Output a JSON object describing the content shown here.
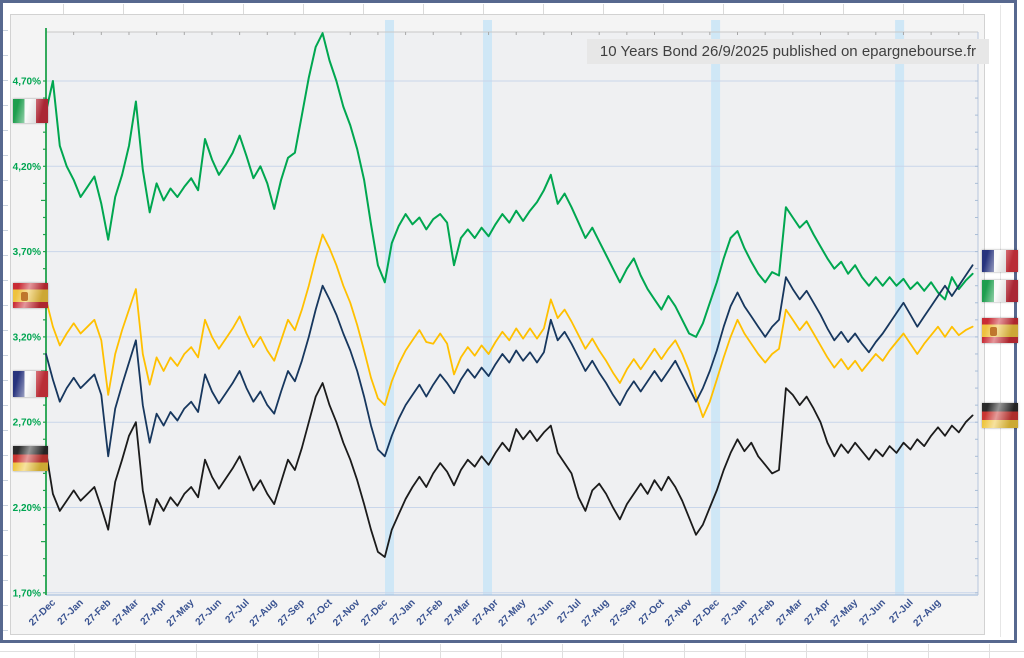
{
  "title_overlay": "10 Years Bond 26/9/2025 published on epargnebourse.fr",
  "chart_data": {
    "type": "line",
    "title": "10 Years Bond 26/9/2025 published on epargnebourse.fr",
    "x_axis": {
      "tick_labels": [
        "27-Dec",
        "27-Jan",
        "27-Feb",
        "27-Mar",
        "27-Apr",
        "27-May",
        "27-Jun",
        "27-Jul",
        "27-Aug",
        "27-Sep",
        "27-Oct",
        "27-Nov",
        "27-Dec",
        "27-Jan",
        "27-Feb",
        "27-Mar",
        "27-Apr",
        "27-May",
        "27-Jun",
        "27-Jul",
        "27-Aug",
        "27-Sep",
        "27-Oct",
        "27-Nov",
        "27-Dec",
        "27-Jan",
        "27-Feb",
        "27-Mar",
        "27-Apr",
        "27-May",
        "27-Jun",
        "27-Jul",
        "27-Aug"
      ]
    },
    "y_axis": {
      "tick_labels": [
        "4,70%",
        "4,20%",
        "3,70%",
        "3,20%",
        "2,70%",
        "2,20%",
        "1,70%"
      ],
      "tick_values": [
        4.7,
        4.2,
        3.7,
        3.2,
        2.7,
        2.2,
        1.7
      ],
      "unit": "percent yield"
    },
    "ylim": [
      1.69,
      4.99
    ],
    "grid": true,
    "highlight_bands_month_index": [
      12.42,
      15.96,
      24.21,
      30.86
    ],
    "colors": {
      "italy": "#00a750",
      "spain": "#ffc000",
      "france": "#17375e",
      "germany": "#1b1b1b",
      "band": "#cfe7f6",
      "gridline": "#c9d6ea",
      "bottom_axis": "#aac1de",
      "y_axis": "#1ea24c",
      "y_label": "#00a551",
      "x_label": "#3a5391",
      "title_bg": "#e7e7e7",
      "title_text": "#3f3f3f"
    },
    "month_step_per_point": 0.25,
    "series": [
      {
        "name": "Italy 10Y",
        "country": "italy",
        "values_bp": [
          452,
          470,
          432,
          420,
          412,
          402,
          408,
          414,
          398,
          377,
          402,
          415,
          432,
          458,
          418,
          393,
          410,
          400,
          407,
          402,
          408,
          413,
          406,
          436,
          424,
          415,
          421,
          428,
          438,
          426,
          413,
          420,
          410,
          395,
          412,
          425,
          428,
          450,
          472,
          490,
          498,
          482,
          470,
          455,
          444,
          430,
          412,
          386,
          362,
          352,
          375,
          385,
          392,
          386,
          390,
          383,
          389,
          392,
          387,
          362,
          378,
          383,
          378,
          384,
          379,
          386,
          392,
          387,
          394,
          388,
          394,
          399,
          406,
          415,
          398,
          404,
          396,
          387,
          378,
          384,
          376,
          368,
          360,
          352,
          360,
          366,
          356,
          348,
          342,
          336,
          344,
          338,
          330,
          322,
          320,
          328,
          340,
          352,
          366,
          378,
          382,
          372,
          364,
          357,
          352,
          358,
          356,
          396,
          390,
          384,
          388,
          380,
          373,
          366,
          360,
          364,
          357,
          362,
          355,
          350,
          355,
          350,
          355,
          350,
          354,
          348,
          352,
          347,
          352,
          346,
          342,
          355,
          348,
          353,
          357
        ]
      },
      {
        "name": "Spain 10Y",
        "country": "spain",
        "values_bp": [
          342,
          326,
          315,
          322,
          328,
          322,
          326,
          330,
          318,
          286,
          310,
          324,
          336,
          348,
          310,
          292,
          308,
          300,
          308,
          303,
          310,
          314,
          308,
          330,
          320,
          313,
          319,
          325,
          332,
          322,
          314,
          320,
          312,
          306,
          318,
          330,
          324,
          336,
          350,
          366,
          380,
          372,
          362,
          350,
          340,
          327,
          312,
          296,
          284,
          280,
          294,
          304,
          312,
          318,
          324,
          317,
          316,
          322,
          316,
          298,
          308,
          314,
          309,
          315,
          310,
          317,
          323,
          318,
          325,
          319,
          325,
          319,
          325,
          342,
          331,
          336,
          329,
          321,
          313,
          319,
          312,
          306,
          299,
          293,
          301,
          307,
          301,
          307,
          313,
          307,
          313,
          318,
          310,
          300,
          285,
          273,
          282,
          295,
          308,
          320,
          330,
          322,
          316,
          310,
          305,
          310,
          313,
          336,
          330,
          324,
          329,
          322,
          315,
          308,
          302,
          307,
          301,
          306,
          300,
          305,
          310,
          306,
          312,
          317,
          322,
          316,
          310,
          316,
          321,
          326,
          320,
          326,
          321,
          324,
          326
        ]
      },
      {
        "name": "France 10Y",
        "country": "france",
        "values_bp": [
          310,
          295,
          282,
          290,
          296,
          290,
          294,
          298,
          286,
          250,
          278,
          292,
          305,
          318,
          280,
          258,
          275,
          268,
          276,
          271,
          278,
          282,
          276,
          298,
          288,
          281,
          287,
          293,
          300,
          290,
          282,
          288,
          280,
          275,
          288,
          300,
          294,
          306,
          320,
          336,
          350,
          342,
          333,
          322,
          312,
          300,
          285,
          268,
          254,
          250,
          262,
          272,
          280,
          286,
          292,
          285,
          292,
          298,
          293,
          287,
          295,
          301,
          296,
          302,
          297,
          304,
          310,
          305,
          312,
          306,
          311,
          305,
          311,
          330,
          318,
          323,
          316,
          308,
          300,
          306,
          299,
          293,
          286,
          280,
          288,
          294,
          288,
          294,
          300,
          294,
          300,
          306,
          298,
          290,
          282,
          290,
          300,
          312,
          326,
          338,
          346,
          338,
          332,
          326,
          320,
          326,
          330,
          355,
          348,
          342,
          347,
          340,
          333,
          325,
          318,
          323,
          317,
          322,
          316,
          311,
          317,
          322,
          328,
          334,
          340,
          333,
          326,
          332,
          338,
          344,
          350,
          344,
          350,
          356,
          362
        ]
      },
      {
        "name": "Germany 10Y",
        "country": "germany",
        "values_bp": [
          253,
          228,
          218,
          224,
          230,
          224,
          228,
          232,
          220,
          207,
          235,
          248,
          262,
          270,
          230,
          210,
          225,
          218,
          226,
          221,
          228,
          232,
          226,
          248,
          238,
          231,
          237,
          243,
          250,
          240,
          230,
          236,
          228,
          222,
          235,
          248,
          242,
          255,
          270,
          285,
          293,
          280,
          270,
          258,
          248,
          236,
          222,
          207,
          194,
          191,
          207,
          216,
          225,
          232,
          238,
          232,
          240,
          246,
          241,
          233,
          242,
          248,
          244,
          250,
          245,
          252,
          258,
          253,
          266,
          260,
          265,
          259,
          264,
          268,
          252,
          246,
          240,
          226,
          218,
          230,
          234,
          228,
          220,
          213,
          222,
          228,
          234,
          228,
          236,
          230,
          238,
          232,
          224,
          214,
          204,
          210,
          220,
          230,
          242,
          252,
          260,
          253,
          258,
          250,
          245,
          240,
          242,
          290,
          286,
          280,
          285,
          278,
          270,
          258,
          250,
          257,
          252,
          258,
          253,
          248,
          254,
          250,
          256,
          252,
          258,
          254,
          260,
          256,
          262,
          267,
          262,
          268,
          264,
          270,
          274
        ]
      }
    ],
    "left_flags": [
      "italy",
      "spain",
      "france",
      "germany"
    ],
    "right_flags": [
      "france",
      "italy",
      "spain",
      "germany"
    ]
  }
}
